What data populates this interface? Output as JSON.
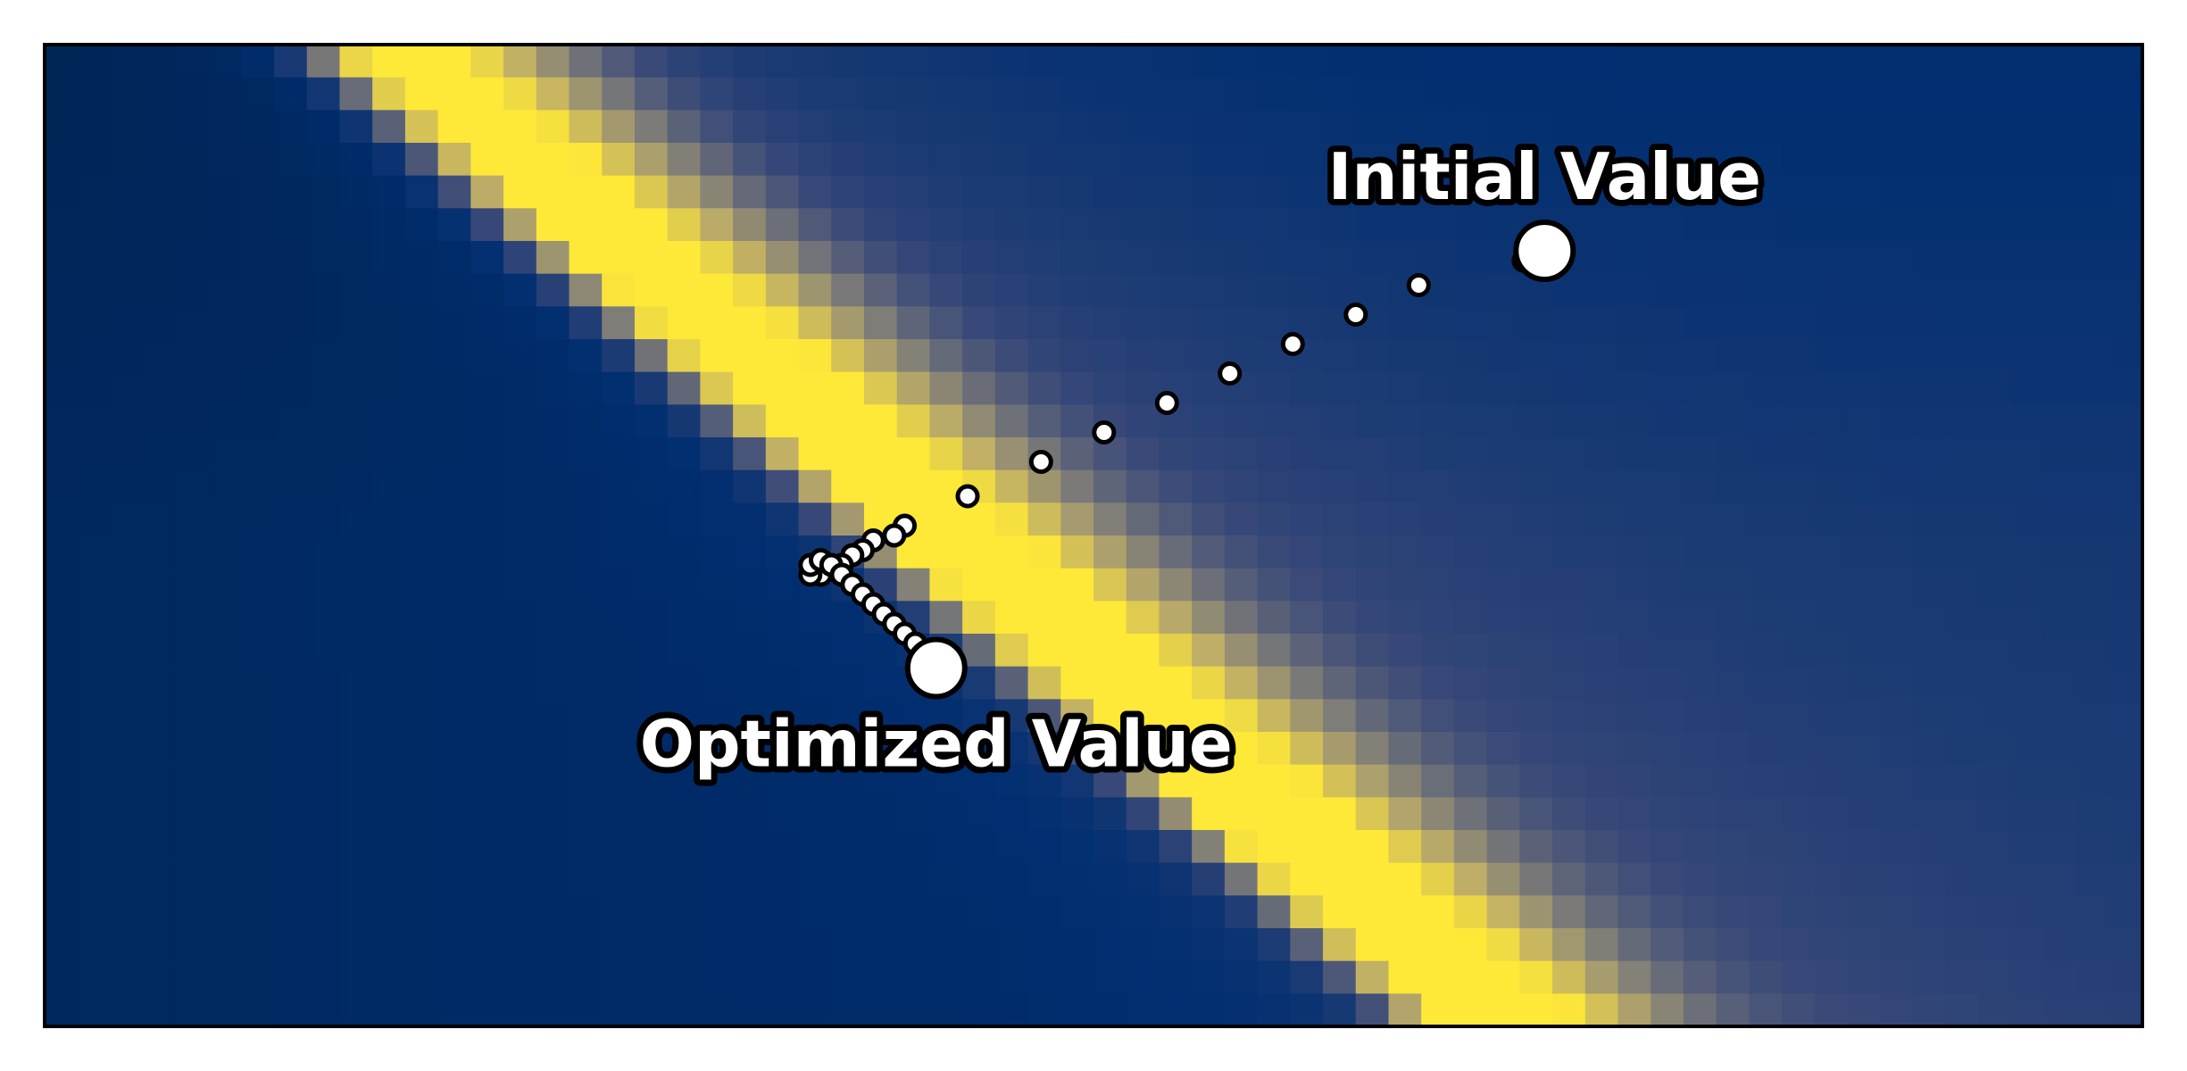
{
  "chart_data": {
    "type": "heatmap",
    "title": "",
    "xlabel": "",
    "ylabel": "",
    "axes_visible": false,
    "grid": false,
    "colormap": "cividis",
    "colors": {
      "dark": "#00224e",
      "mid": "#7c7b78",
      "bright": "#fee838",
      "marker_fill": "#ffffff",
      "marker_edge": "#000000"
    },
    "heatmap": {
      "xlim": [
        -1.0,
        1.0
      ],
      "ylim": [
        -1.0,
        1.0
      ],
      "resolution": [
        64,
        30
      ],
      "value_range": [
        0,
        1
      ],
      "description_of_surface": "narrow bright valley running diagonally from upper-left to lower-middle"
    },
    "trajectory": {
      "x": [
        0.43,
        0.41,
        0.31,
        0.25,
        0.19,
        0.13,
        0.07,
        0.01,
        -0.05,
        -0.12,
        -0.18,
        -0.19,
        -0.21,
        -0.22,
        -0.23,
        -0.24,
        -0.25,
        -0.26,
        -0.27,
        -0.27,
        -0.26,
        -0.25,
        -0.24,
        -0.23,
        -0.22,
        -0.21,
        -0.2,
        -0.19,
        -0.18,
        -0.17,
        -0.16,
        -0.15
      ],
      "y": [
        0.58,
        0.56,
        0.51,
        0.45,
        0.39,
        0.33,
        0.27,
        0.21,
        0.15,
        0.08,
        0.02,
        0.0,
        -0.01,
        -0.03,
        -0.04,
        -0.06,
        -0.07,
        -0.08,
        -0.08,
        -0.06,
        -0.05,
        -0.06,
        -0.08,
        -0.1,
        -0.12,
        -0.14,
        -0.16,
        -0.18,
        -0.2,
        -0.22,
        -0.24,
        -0.27
      ]
    },
    "initial_point": {
      "x": 0.43,
      "y": 0.58
    },
    "optimized_point": {
      "x": -0.15,
      "y": -0.27
    },
    "annotations": [
      {
        "id": "initial",
        "text": "Initial Value"
      },
      {
        "id": "optimized",
        "text": "Optimized Value"
      }
    ]
  }
}
